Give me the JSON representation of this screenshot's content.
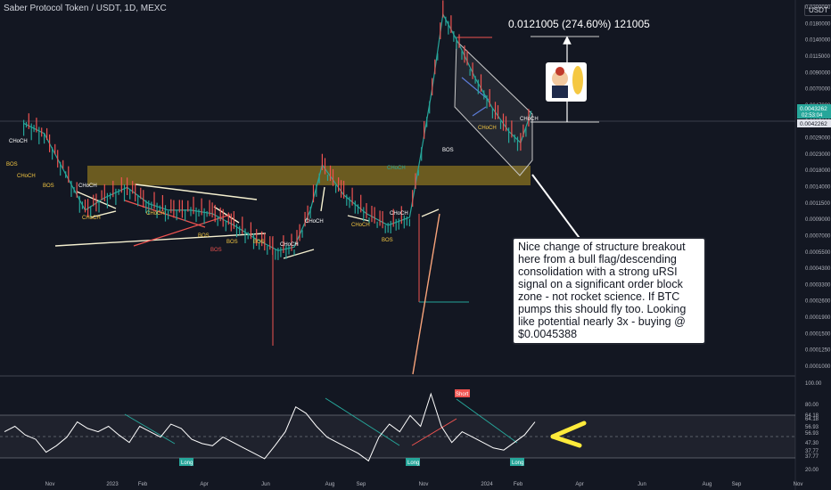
{
  "header": {
    "symbol": "Saber Protocol Token / USDT, 1D, MEXC",
    "currency": "USDT"
  },
  "measure_label": "0.0121005 (274.60%) 121005",
  "note": "Nice change of structure breakout here from a bull flag/descending consolidation with a strong uRSI signal on a significant order block zone - not rocket science. If BTC pumps this should fly too. Looking like potential nearly 3x - buying @ $0.0045388",
  "price_axis": {
    "ticks": [
      "0.0200000",
      "0.0180000",
      "0.0140000",
      "0.0115000",
      "0.0090000",
      "0.0070000",
      "0.0047000",
      "0.0037000",
      "0.0029000",
      "0.0023000",
      "0.0018000",
      "0.0014000",
      "0.0011500",
      "0.0009000",
      "0.0007000",
      "0.0005500",
      "0.0004300",
      "0.0003300",
      "0.0002600",
      "0.0001900",
      "0.0001500",
      "0.0001250",
      "0.0001000"
    ],
    "last_price": "0.0043262",
    "countdown": "02:53:04",
    "ref_price": "0.0042262",
    "scale": "log"
  },
  "rsi_axis": {
    "ticks": [
      "100.00",
      "80.00",
      "64.18",
      "64.18",
      "56.93",
      "56.93",
      "47.30",
      "37.77",
      "37.77",
      "20.00"
    ]
  },
  "time_axis": [
    "Nov",
    "2023",
    "Feb",
    "Apr",
    "Jun",
    "Aug",
    "Sep",
    "Nov",
    "2024",
    "Feb",
    "Apr",
    "Jun",
    "Aug",
    "Sep",
    "Nov"
  ],
  "annotations": {
    "choch": [
      "CHoCH",
      "CHoCH",
      "CHoCH",
      "CHoCH",
      "CHoCH",
      "CHoCH",
      "CHoCH",
      "CHoCH",
      "CHoCH",
      "CHoCH",
      "CHoCH"
    ],
    "bos": [
      "BOS",
      "BOS",
      "BOS",
      "BOS",
      "BOS",
      "BOS",
      "BOS",
      "BOS"
    ],
    "order_block": "CHoCH",
    "signals": {
      "long_1": "Long",
      "long_2": "Long",
      "long_3": "Long",
      "short_1": "Short"
    }
  },
  "colors": {
    "background": "#131722",
    "bull": "#26a69a",
    "bear": "#ef5350",
    "order_block": "#8a7320",
    "rsi_line": "#ffffff",
    "arrow": "#ffeb3b",
    "measure": "#ffffff",
    "trend_lines": "#f5f0d0"
  },
  "icons": {
    "mascot": "rocket-mascot-icon",
    "arrow": "yellow-arrow-icon"
  },
  "chart_data": {
    "type": "candlestick",
    "title": "",
    "x_axis": "date",
    "y_scale": "log",
    "series": [
      {
        "name": "",
        "points": [
          [
            "2022-11-01",
            0.0036
          ],
          [
            "2022-11-20",
            0.0031
          ],
          [
            "2022-12-10",
            0.0017
          ],
          [
            "2022-12-28",
            0.001
          ],
          [
            "2023-01-15",
            0.0012
          ],
          [
            "2023-02-05",
            0.0014
          ],
          [
            "2023-02-25",
            0.0011
          ],
          [
            "2023-03-15",
            0.001
          ],
          [
            "2023-04-05",
            0.001
          ],
          [
            "2023-04-25",
            0.00095
          ],
          [
            "2023-05-15",
            0.0008
          ],
          [
            "2023-06-05",
            0.00065
          ],
          [
            "2023-06-25",
            0.00055
          ],
          [
            "2023-07-10",
            0.00058
          ],
          [
            "2023-07-25",
            0.001
          ],
          [
            "2023-08-05",
            0.00195
          ],
          [
            "2023-08-25",
            0.00125
          ],
          [
            "2023-09-15",
            0.00095
          ],
          [
            "2023-10-05",
            0.0008
          ],
          [
            "2023-10-25",
            0.0009
          ],
          [
            "2023-11-05",
            0.0024
          ],
          [
            "2023-11-15",
            0.006
          ],
          [
            "2023-11-25",
            0.018
          ],
          [
            "2023-12-10",
            0.0115
          ],
          [
            "2023-12-25",
            0.007
          ],
          [
            "2024-01-10",
            0.0045
          ],
          [
            "2024-01-25",
            0.0032
          ],
          [
            "2024-02-05",
            0.0027
          ],
          [
            "2024-02-15",
            0.0043262
          ]
        ]
      }
    ],
    "rsi": {
      "ylim": [
        20,
        100
      ],
      "levels": [
        64.18,
        56.93,
        47.3,
        37.77
      ],
      "values": [
        55,
        60,
        52,
        48,
        36,
        42,
        50,
        64,
        58,
        55,
        60,
        52,
        45,
        60,
        55,
        50,
        62,
        58,
        48,
        44,
        42,
        50,
        45,
        40,
        35,
        30,
        42,
        55,
        78,
        72,
        60,
        50,
        45,
        40,
        35,
        28,
        50,
        62,
        55,
        70,
        60,
        90,
        60,
        45,
        55,
        50,
        45,
        40,
        38,
        45,
        52,
        64
      ]
    },
    "measure": {
      "price_change": 0.0121005,
      "percent": 274.6,
      "ticks": 121005
    }
  }
}
